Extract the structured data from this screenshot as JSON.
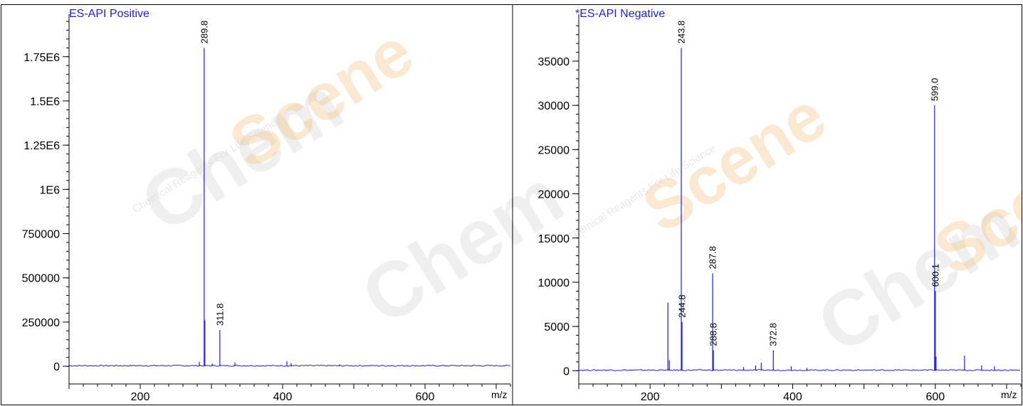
{
  "chart_data": [
    {
      "type": "bar",
      "title": "ES-API Positive",
      "xlabel": "m/z",
      "ylabel": "",
      "xlim": [
        100,
        720
      ],
      "ylim": [
        -100000,
        1950000
      ],
      "x_ticks": [
        {
          "value": 200,
          "label": "200"
        },
        {
          "value": 400,
          "label": "400"
        },
        {
          "value": 600,
          "label": "600"
        }
      ],
      "y_ticks": [
        {
          "value": 0,
          "label": "0"
        },
        {
          "value": 250000,
          "label": "250000"
        },
        {
          "value": 500000,
          "label": "500000"
        },
        {
          "value": 750000,
          "label": "750000"
        },
        {
          "value": 1000000,
          "label": "1E6"
        },
        {
          "value": 1250000,
          "label": "1.25E6"
        },
        {
          "value": 1500000,
          "label": "1.5E6"
        },
        {
          "value": 1750000,
          "label": "1.75E6"
        }
      ],
      "peaks": [
        {
          "mz": 289.8,
          "intensity": 1800000,
          "label": "289.8"
        },
        {
          "mz": 290.8,
          "intensity": 260000,
          "label": ""
        },
        {
          "mz": 311.8,
          "intensity": 205000,
          "label": "311.8"
        },
        {
          "mz": 283.0,
          "intensity": 25000,
          "label": ""
        },
        {
          "mz": 301.0,
          "intensity": 15000,
          "label": ""
        },
        {
          "mz": 333.0,
          "intensity": 22000,
          "label": ""
        },
        {
          "mz": 406.0,
          "intensity": 28000,
          "label": ""
        },
        {
          "mz": 412.0,
          "intensity": 18000,
          "label": ""
        },
        {
          "mz": 480.0,
          "intensity": 10000,
          "label": ""
        }
      ]
    },
    {
      "type": "bar",
      "title": "*ES-API Negative",
      "xlabel": "m/z",
      "ylabel": "",
      "xlim": [
        100,
        720
      ],
      "ylim": [
        -1500,
        39500
      ],
      "x_ticks": [
        {
          "value": 200,
          "label": "200"
        },
        {
          "value": 400,
          "label": "400"
        },
        {
          "value": 600,
          "label": "600"
        }
      ],
      "y_ticks": [
        {
          "value": 0,
          "label": "0"
        },
        {
          "value": 5000,
          "label": "5000"
        },
        {
          "value": 10000,
          "label": "10000"
        },
        {
          "value": 15000,
          "label": "15000"
        },
        {
          "value": 20000,
          "label": "20000"
        },
        {
          "value": 25000,
          "label": "25000"
        },
        {
          "value": 30000,
          "label": "30000"
        },
        {
          "value": 35000,
          "label": "35000"
        }
      ],
      "peaks": [
        {
          "mz": 243.8,
          "intensity": 36500,
          "label": "243.8"
        },
        {
          "mz": 599.0,
          "intensity": 30000,
          "label": "599.0"
        },
        {
          "mz": 287.8,
          "intensity": 11000,
          "label": "287.8"
        },
        {
          "mz": 600.1,
          "intensity": 9000,
          "label": "600.1"
        },
        {
          "mz": 244.8,
          "intensity": 5500,
          "label": "244.8"
        },
        {
          "mz": 288.8,
          "intensity": 2300,
          "label": "288.8"
        },
        {
          "mz": 372.8,
          "intensity": 2300,
          "label": "372.8"
        },
        {
          "mz": 225.0,
          "intensity": 7700,
          "label": ""
        },
        {
          "mz": 227.0,
          "intensity": 1200,
          "label": ""
        },
        {
          "mz": 601.0,
          "intensity": 1600,
          "label": ""
        },
        {
          "mz": 641.0,
          "intensity": 1700,
          "label": ""
        },
        {
          "mz": 356.0,
          "intensity": 900,
          "label": ""
        },
        {
          "mz": 348.0,
          "intensity": 600,
          "label": ""
        },
        {
          "mz": 398.0,
          "intensity": 500,
          "label": ""
        },
        {
          "mz": 665.0,
          "intensity": 600,
          "label": ""
        },
        {
          "mz": 683.0,
          "intensity": 500,
          "label": ""
        },
        {
          "mz": 331.0,
          "intensity": 400,
          "label": ""
        },
        {
          "mz": 420.0,
          "intensity": 300,
          "label": ""
        }
      ]
    }
  ],
  "watermark": {
    "brand_left": "Chem",
    "brand_right": "Scene",
    "tagline": "Chemical Reagents For Life Science"
  },
  "colors": {
    "trace": "#1a1aff",
    "title": "#1a1aff",
    "axis": "#000000"
  }
}
